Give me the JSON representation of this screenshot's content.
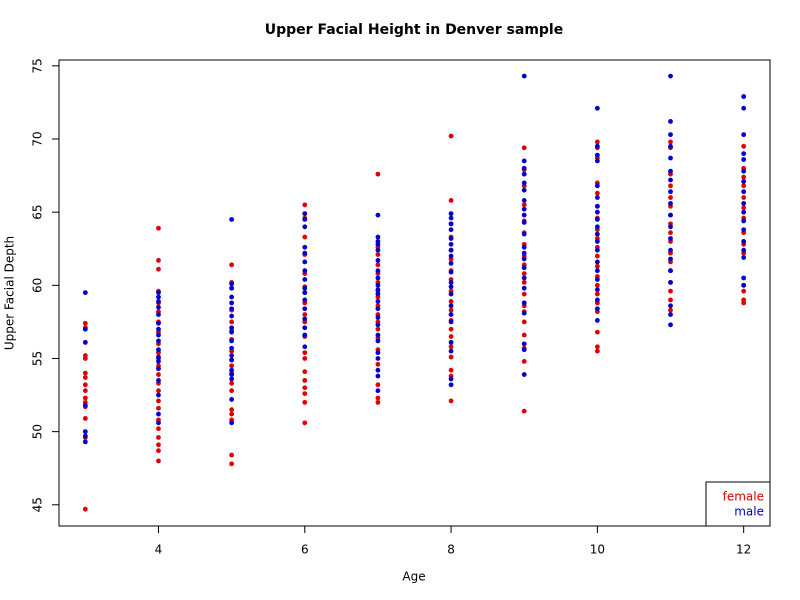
{
  "chart_data": {
    "type": "scatter",
    "title": "Upper Facial Height in Denver sample",
    "x_label": "Age",
    "y_label": "Upper Facial Depth",
    "xlim": [
      2.64,
      12.36
    ],
    "xticks": [
      4,
      6,
      8,
      10,
      12
    ],
    "ylim": [
      43.55,
      75.4
    ],
    "yticks": [
      45,
      50,
      55,
      60,
      65,
      70,
      75
    ],
    "legend_position": "bottom-right",
    "series": [
      {
        "name": "female",
        "color": "#e00000",
        "x": [
          3,
          3,
          3,
          3,
          3,
          3,
          3,
          3,
          3,
          3,
          3,
          3,
          3,
          3,
          4,
          4,
          4,
          4,
          4,
          4,
          4,
          4,
          4,
          4,
          4,
          4,
          4,
          4,
          4,
          4,
          4,
          4,
          4,
          4,
          4,
          4,
          4,
          5,
          5,
          5,
          5,
          5,
          5,
          5,
          5,
          5,
          5,
          5,
          5,
          5,
          5,
          5,
          5,
          5,
          5,
          6,
          6,
          6,
          6,
          6,
          6,
          6,
          6,
          6,
          6,
          6,
          6,
          6,
          6,
          6,
          6,
          6,
          6,
          6,
          7,
          7,
          7,
          7,
          7,
          7,
          7,
          7,
          7,
          7,
          7,
          7,
          7,
          7,
          7,
          7,
          7,
          7,
          8,
          8,
          8,
          8,
          8,
          8,
          8,
          8,
          8,
          8,
          8,
          8,
          8,
          8,
          8,
          8,
          8,
          8,
          8,
          9,
          9,
          9,
          9,
          9,
          9,
          9,
          9,
          9,
          9,
          9,
          9,
          9,
          9,
          9,
          9,
          9,
          9,
          9,
          10,
          10,
          10,
          10,
          10,
          10,
          10,
          10,
          10,
          10,
          10,
          10,
          10,
          10,
          10,
          10,
          10,
          10,
          10,
          10,
          11,
          11,
          11,
          11,
          11,
          11,
          11,
          11,
          11,
          11,
          11,
          11,
          11,
          11,
          11,
          11,
          11,
          12,
          12,
          12,
          12,
          12,
          12,
          12,
          12,
          12,
          12,
          12,
          12,
          12,
          12
        ],
        "values": [
          57.4,
          57.1,
          55.2,
          55.0,
          54.0,
          53.7,
          53.2,
          52.8,
          52.3,
          52.0,
          51.7,
          50.9,
          49.6,
          44.7,
          63.9,
          61.7,
          61.1,
          59.6,
          58.8,
          58.2,
          57.5,
          56.8,
          56.0,
          55.4,
          55.0,
          54.5,
          53.9,
          53.3,
          52.8,
          52.1,
          51.6,
          50.8,
          50.2,
          49.6,
          49.1,
          48.7,
          48.0,
          61.4,
          60.2,
          59.8,
          58.3,
          57.5,
          56.9,
          56.3,
          55.5,
          54.9,
          54.5,
          54.0,
          53.3,
          52.8,
          51.5,
          51.2,
          50.8,
          48.4,
          47.8,
          65.5,
          64.6,
          63.3,
          62.1,
          60.8,
          59.9,
          59.5,
          58.8,
          58.0,
          57.5,
          56.5,
          55.4,
          55.0,
          54.1,
          53.5,
          53.0,
          52.6,
          52.0,
          50.6,
          67.6,
          62.6,
          62.1,
          61.4,
          60.8,
          60.2,
          59.6,
          59.2,
          58.6,
          58.0,
          57.5,
          57.0,
          56.4,
          55.6,
          54.6,
          53.2,
          52.3,
          52.0,
          70.2,
          65.8,
          64.2,
          63.3,
          62.4,
          61.8,
          61.0,
          60.4,
          59.6,
          58.9,
          58.3,
          57.6,
          57.0,
          56.5,
          55.8,
          55.1,
          54.2,
          53.8,
          52.1,
          69.4,
          67.9,
          66.8,
          65.5,
          64.4,
          63.6,
          62.8,
          62.0,
          61.4,
          60.8,
          60.2,
          59.4,
          58.6,
          58.2,
          57.5,
          56.6,
          55.7,
          54.8,
          51.4,
          69.8,
          69.4,
          68.7,
          67.0,
          66.3,
          65.4,
          64.6,
          63.8,
          63.2,
          62.6,
          62.0,
          61.3,
          60.6,
          60.0,
          59.4,
          58.8,
          58.2,
          56.8,
          55.8,
          55.5,
          69.8,
          69.4,
          67.6,
          66.8,
          66.0,
          65.4,
          64.8,
          64.2,
          63.6,
          63.0,
          62.2,
          61.6,
          61.0,
          60.2,
          59.6,
          59.0,
          58.3,
          69.5,
          68.0,
          67.4,
          66.8,
          66.0,
          65.3,
          64.6,
          63.6,
          62.8,
          62.2,
          60.0,
          59.6,
          59.0,
          58.8
        ]
      },
      {
        "name": "male",
        "color": "#0000cc",
        "x": [
          3,
          3,
          3,
          3,
          3,
          3,
          3,
          4,
          4,
          4,
          4,
          4,
          4,
          4,
          4,
          4,
          4,
          4,
          4,
          4,
          4,
          4,
          4,
          4,
          5,
          5,
          5,
          5,
          5,
          5,
          5,
          5,
          5,
          5,
          5,
          5,
          5,
          5,
          5,
          5,
          5,
          5,
          6,
          6,
          6,
          6,
          6,
          6,
          6,
          6,
          6,
          6,
          6,
          6,
          6,
          6,
          6,
          6,
          7,
          7,
          7,
          7,
          7,
          7,
          7,
          7,
          7,
          7,
          7,
          7,
          7,
          7,
          7,
          7,
          7,
          7,
          7,
          7,
          7,
          7,
          8,
          8,
          8,
          8,
          8,
          8,
          8,
          8,
          8,
          8,
          8,
          8,
          8,
          8,
          8,
          8,
          8,
          8,
          8,
          8,
          9,
          9,
          9,
          9,
          9,
          9,
          9,
          9,
          9,
          9,
          9,
          9,
          9,
          9,
          9,
          9,
          9,
          9,
          9,
          9,
          9,
          9,
          10,
          10,
          10,
          10,
          10,
          10,
          10,
          10,
          10,
          10,
          10,
          10,
          10,
          10,
          10,
          10,
          10,
          10,
          10,
          10,
          11,
          11,
          11,
          11,
          11,
          11,
          11,
          11,
          11,
          11,
          11,
          11,
          11,
          11,
          11,
          11,
          11,
          11,
          11,
          12,
          12,
          12,
          12,
          12,
          12,
          12,
          12,
          12,
          12,
          12,
          12,
          12,
          12,
          12,
          12,
          12
        ],
        "values": [
          59.5,
          57.0,
          56.1,
          51.8,
          50.0,
          49.7,
          49.3,
          59.5,
          59.2,
          58.9,
          58.5,
          58.0,
          57.4,
          57.0,
          56.6,
          56.2,
          55.6,
          55.1,
          54.8,
          54.3,
          53.5,
          52.5,
          51.2,
          50.6,
          64.5,
          60.1,
          59.8,
          59.2,
          58.8,
          58.4,
          57.9,
          57.1,
          56.8,
          56.2,
          55.7,
          55.2,
          54.9,
          54.2,
          53.9,
          53.6,
          52.2,
          50.6,
          64.9,
          64.5,
          64.0,
          62.6,
          62.2,
          61.6,
          61.0,
          60.4,
          59.8,
          59.5,
          59.0,
          58.4,
          57.7,
          57.1,
          56.6,
          55.8,
          64.8,
          63.3,
          63.0,
          62.8,
          62.4,
          61.7,
          61.0,
          60.5,
          60.0,
          59.7,
          59.4,
          58.9,
          58.4,
          57.8,
          57.3,
          56.6,
          56.2,
          55.4,
          55.0,
          54.2,
          53.8,
          52.8,
          64.9,
          64.6,
          64.2,
          63.8,
          63.2,
          62.8,
          62.4,
          62.0,
          61.5,
          60.9,
          60.2,
          59.9,
          59.4,
          58.6,
          58.0,
          57.5,
          56.1,
          55.5,
          53.6,
          53.2,
          74.3,
          68.5,
          68.0,
          67.6,
          67.0,
          66.5,
          65.8,
          65.2,
          64.8,
          64.3,
          63.5,
          62.6,
          62.2,
          61.8,
          61.2,
          60.5,
          59.8,
          58.8,
          58.1,
          56.0,
          55.6,
          53.9,
          72.1,
          69.5,
          68.9,
          68.5,
          66.8,
          66.0,
          65.4,
          65.0,
          64.5,
          64.0,
          63.5,
          63.0,
          62.4,
          61.6,
          61.0,
          60.4,
          59.7,
          59.0,
          58.4,
          57.6,
          74.3,
          71.2,
          70.3,
          69.5,
          68.7,
          67.8,
          67.2,
          66.4,
          65.6,
          64.8,
          64.0,
          63.2,
          62.4,
          61.8,
          61.0,
          60.2,
          58.6,
          58.0,
          57.3,
          72.9,
          72.1,
          70.3,
          69.0,
          68.6,
          67.8,
          67.1,
          66.4,
          65.6,
          65.0,
          64.4,
          63.8,
          63.0,
          62.4,
          61.9,
          60.5,
          60.0
        ]
      }
    ]
  }
}
